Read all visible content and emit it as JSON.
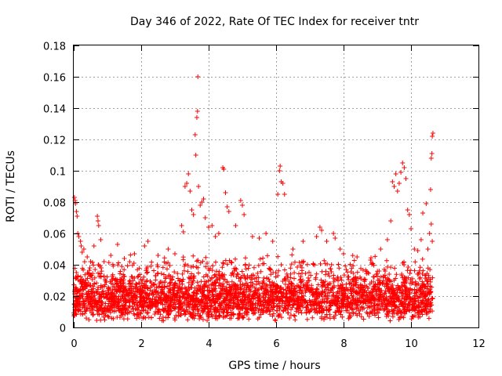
{
  "chart_data": {
    "type": "scatter",
    "title": "Day 346 of 2022, Rate Of TEC Index for receiver tntr",
    "xlabel": "GPS time / hours",
    "ylabel": "ROTI / TECUs",
    "xlim": [
      0,
      12
    ],
    "ylim": [
      0,
      0.18
    ],
    "xticks": [
      0,
      2,
      4,
      6,
      8,
      10,
      12
    ],
    "yticks": [
      0,
      0.02,
      0.04,
      0.06,
      0.08,
      0.1,
      0.12,
      0.14,
      0.16,
      0.18
    ],
    "xtick_labels": [
      "0",
      "2",
      "4",
      "6",
      "8",
      "10",
      "12"
    ],
    "ytick_labels": [
      "0",
      "0.02",
      "0.04",
      "0.06",
      "0.08",
      "0.1",
      "0.12",
      "0.14",
      "0.16",
      "0.18"
    ],
    "grid": true,
    "marker": "+",
    "color": "#ff0000",
    "series": [
      {
        "points": [
          [
            0.02,
            0.083
          ],
          [
            0.04,
            0.081
          ],
          [
            0.05,
            0.079
          ],
          [
            0.08,
            0.074
          ],
          [
            0.1,
            0.071
          ],
          [
            0.12,
            0.06
          ],
          [
            0.15,
            0.058
          ],
          [
            0.2,
            0.055
          ],
          [
            0.22,
            0.052
          ],
          [
            0.25,
            0.048
          ],
          [
            0.3,
            0.05
          ],
          [
            0.4,
            0.045
          ],
          [
            0.5,
            0.042
          ],
          [
            0.6,
            0.052
          ],
          [
            0.7,
            0.071
          ],
          [
            0.72,
            0.068
          ],
          [
            0.74,
            0.065
          ],
          [
            0.8,
            0.056
          ],
          [
            0.9,
            0.042
          ],
          [
            1.1,
            0.046
          ],
          [
            1.3,
            0.053
          ],
          [
            1.5,
            0.044
          ],
          [
            1.8,
            0.047
          ],
          [
            2.1,
            0.052
          ],
          [
            2.2,
            0.055
          ],
          [
            2.5,
            0.046
          ],
          [
            2.8,
            0.05
          ],
          [
            3.0,
            0.047
          ],
          [
            3.2,
            0.065
          ],
          [
            3.25,
            0.061
          ],
          [
            3.3,
            0.09
          ],
          [
            3.35,
            0.092
          ],
          [
            3.4,
            0.098
          ],
          [
            3.45,
            0.087
          ],
          [
            3.5,
            0.075
          ],
          [
            3.55,
            0.072
          ],
          [
            3.6,
            0.123
          ],
          [
            3.62,
            0.11
          ],
          [
            3.65,
            0.134
          ],
          [
            3.67,
            0.138
          ],
          [
            3.68,
            0.16
          ],
          [
            3.7,
            0.09
          ],
          [
            3.75,
            0.078
          ],
          [
            3.8,
            0.08
          ],
          [
            3.85,
            0.082
          ],
          [
            3.9,
            0.07
          ],
          [
            4.0,
            0.064
          ],
          [
            4.1,
            0.065
          ],
          [
            4.2,
            0.058
          ],
          [
            4.3,
            0.06
          ],
          [
            4.42,
            0.102
          ],
          [
            4.45,
            0.101
          ],
          [
            4.5,
            0.086
          ],
          [
            4.55,
            0.077
          ],
          [
            4.6,
            0.074
          ],
          [
            4.8,
            0.065
          ],
          [
            4.95,
            0.081
          ],
          [
            5.0,
            0.078
          ],
          [
            5.05,
            0.072
          ],
          [
            5.3,
            0.058
          ],
          [
            5.5,
            0.057
          ],
          [
            5.7,
            0.06
          ],
          [
            5.9,
            0.055
          ],
          [
            6.05,
            0.085
          ],
          [
            6.1,
            0.1
          ],
          [
            6.12,
            0.103
          ],
          [
            6.15,
            0.093
          ],
          [
            6.2,
            0.092
          ],
          [
            6.25,
            0.085
          ],
          [
            6.5,
            0.05
          ],
          [
            6.8,
            0.055
          ],
          [
            7.2,
            0.058
          ],
          [
            7.3,
            0.064
          ],
          [
            7.35,
            0.062
          ],
          [
            7.5,
            0.055
          ],
          [
            7.7,
            0.06
          ],
          [
            7.75,
            0.057
          ],
          [
            7.9,
            0.05
          ],
          [
            8.0,
            0.047
          ],
          [
            8.4,
            0.045
          ],
          [
            8.8,
            0.043
          ],
          [
            9.1,
            0.05
          ],
          [
            9.3,
            0.056
          ],
          [
            9.4,
            0.068
          ],
          [
            9.45,
            0.093
          ],
          [
            9.5,
            0.09
          ],
          [
            9.55,
            0.098
          ],
          [
            9.6,
            0.087
          ],
          [
            9.65,
            0.092
          ],
          [
            9.7,
            0.099
          ],
          [
            9.75,
            0.105
          ],
          [
            9.8,
            0.102
          ],
          [
            9.85,
            0.095
          ],
          [
            9.9,
            0.075
          ],
          [
            9.95,
            0.072
          ],
          [
            10.0,
            0.063
          ],
          [
            10.1,
            0.05
          ],
          [
            10.2,
            0.049
          ],
          [
            10.3,
            0.056
          ],
          [
            10.35,
            0.073
          ],
          [
            10.45,
            0.079
          ],
          [
            10.5,
            0.05
          ],
          [
            10.55,
            0.06
          ],
          [
            10.58,
            0.088
          ],
          [
            10.6,
            0.108
          ],
          [
            10.62,
            0.111
          ],
          [
            10.63,
            0.122
          ],
          [
            10.65,
            0.124
          ],
          [
            10.6,
            0.066
          ],
          [
            10.63,
            0.055
          ]
        ]
      }
    ],
    "background_band": {
      "x_range": [
        0,
        10.65
      ],
      "y_min_range": [
        0.004,
        0.016
      ],
      "y_max_range": [
        0.024,
        0.048
      ],
      "point_count": 3200,
      "seed": 346
    }
  }
}
